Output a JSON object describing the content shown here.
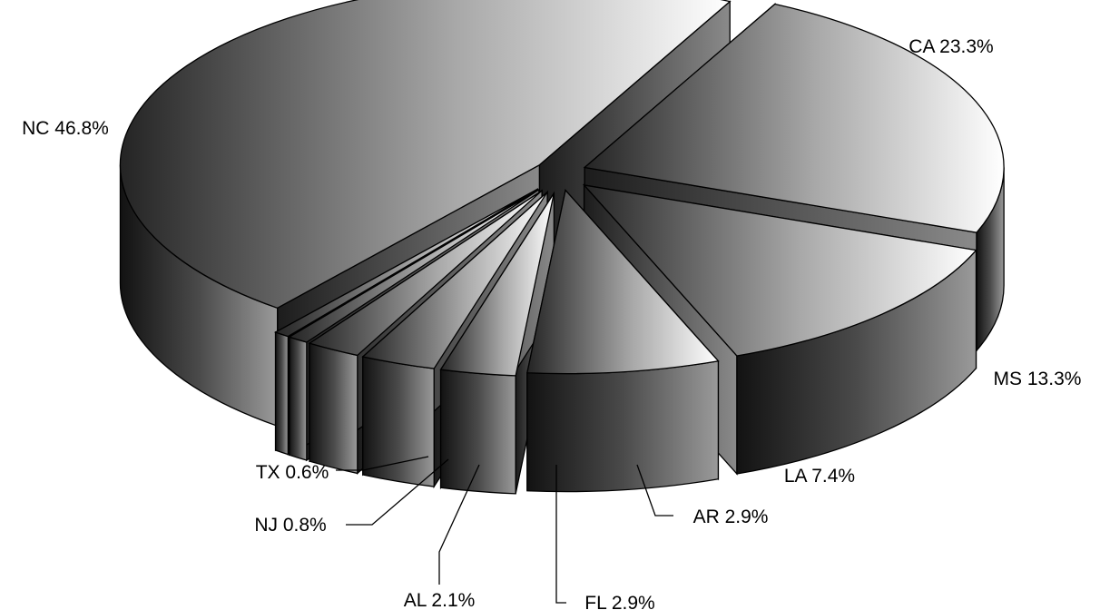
{
  "chart_data": {
    "type": "pie",
    "style": "3d-exploded",
    "title": "",
    "legend": "none",
    "slices": [
      {
        "label": "CA",
        "value": 23.3,
        "text": "CA 23.3%"
      },
      {
        "label": "MS",
        "value": 13.3,
        "text": "MS 13.3%"
      },
      {
        "label": "LA",
        "value": 7.4,
        "text": "LA 7.4%"
      },
      {
        "label": "AR",
        "value": 2.9,
        "text": "AR 2.9%"
      },
      {
        "label": "FL",
        "value": 2.9,
        "text": "FL 2.9%"
      },
      {
        "label": "AL",
        "value": 2.1,
        "text": "AL 2.1%"
      },
      {
        "label": "NJ",
        "value": 0.8,
        "text": "NJ 0.8%"
      },
      {
        "label": "TX",
        "value": 0.6,
        "text": "TX 0.6%"
      },
      {
        "label": "NC",
        "value": 46.8,
        "text": "NC 46.8%"
      }
    ],
    "colors": {
      "dark": "#1a1a1a",
      "light": "#ffffff",
      "outline": "#000000"
    }
  }
}
